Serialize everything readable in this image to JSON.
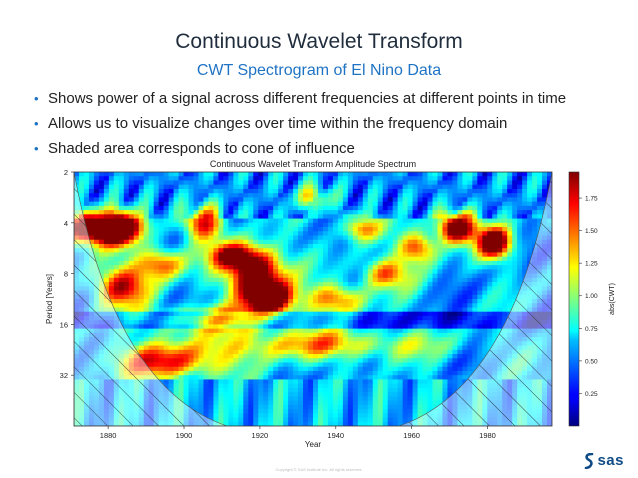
{
  "slide": {
    "title": "Continuous Wavelet Transform",
    "subtitle": "CWT Spectrogram of El Nino Data",
    "bullets": [
      "Shows power of a signal across different frequencies at different points in time",
      "Allows us to visualize changes over time within the frequency domain",
      "Shaded area corresponds to cone of influence"
    ],
    "footer_text": "Copyright © SAS Institute Inc. All rights reserved.",
    "logo_text": "sas"
  },
  "chart_data": {
    "type": "heatmap",
    "title": "Continuous Wavelet Transform Amplitude Spectrum",
    "xlabel": "Year",
    "ylabel": "Period [Years]",
    "xlim": [
      1871,
      1997
    ],
    "ylim_log2": [
      1,
      6
    ],
    "x_ticks": [
      1880,
      1900,
      1920,
      1940,
      1960,
      1980
    ],
    "y_ticks": [
      2,
      4,
      8,
      16,
      32
    ],
    "colorbar": {
      "label": "abs(CWT)",
      "range": [
        0,
        1.95
      ],
      "ticks": [
        0.25,
        0.5,
        0.75,
        1.0,
        1.25,
        1.5,
        1.75
      ],
      "tick_labels": [
        "0.25",
        "0.50",
        "0.75",
        "1.00",
        "1.25",
        "1.50",
        "1.75"
      ],
      "colormap": "jet"
    },
    "cone_of_influence": "hatched",
    "grid": false
  },
  "colors": {
    "title": "#1f2d3d",
    "subtitle": "#1f73c4",
    "bullet": "#1f73c4",
    "logo": "#0f4b86"
  }
}
